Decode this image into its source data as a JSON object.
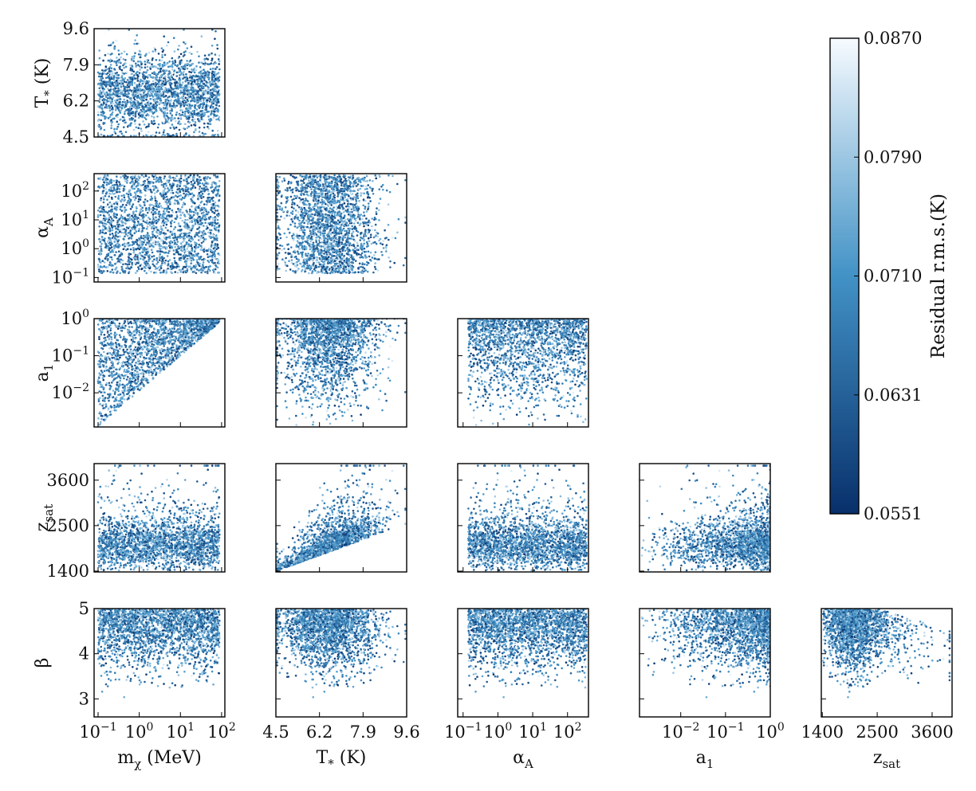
{
  "chart_data": {
    "type": "scatter",
    "layout": "corner-plot",
    "parameters": [
      {
        "key": "mchi",
        "label": "m_χ (MeV)",
        "scale": "log",
        "range": [
          0.08,
          120
        ],
        "ticks": [
          0.1,
          1,
          10,
          100
        ],
        "tick_labels": [
          "10^-1",
          "10^0",
          "10^1",
          "10^2"
        ]
      },
      {
        "key": "Tstar",
        "label": "T_* (K)",
        "scale": "linear",
        "range": [
          4.5,
          9.6
        ],
        "ticks": [
          4.5,
          6.2,
          7.9,
          9.6
        ],
        "tick_labels": [
          "4.5",
          "6.2",
          "7.9",
          "9.6"
        ]
      },
      {
        "key": "alphaA",
        "label": "α_A",
        "scale": "log",
        "range": [
          0.07,
          400
        ],
        "ticks": [
          0.1,
          1,
          10,
          100
        ],
        "tick_labels": [
          "10^-1",
          "10^0",
          "10^1",
          "10^2"
        ]
      },
      {
        "key": "a1",
        "label": "a_1",
        "scale": "log",
        "range": [
          0.0012,
          1
        ],
        "ticks": [
          0.01,
          0.1,
          1
        ],
        "tick_labels": [
          "10^-2",
          "10^-1",
          "10^0"
        ]
      },
      {
        "key": "zsat",
        "label": "z_sat",
        "scale": "linear",
        "range": [
          1380,
          4000
        ],
        "ticks": [
          1400,
          2500,
          3600
        ],
        "tick_labels": [
          "1400",
          "2500",
          "3600"
        ]
      },
      {
        "key": "beta",
        "label": "β",
        "scale": "linear",
        "range": [
          2.6,
          5
        ],
        "ticks": [
          3,
          4,
          5
        ],
        "tick_labels": [
          "3",
          "4",
          "5"
        ]
      }
    ],
    "x_labels": [
      "m_χ (MeV)",
      "T_* (K)",
      "α_A",
      "a_1",
      "z_sat"
    ],
    "y_labels": [
      "T_* (K)",
      "α_A",
      "a_1",
      "z_sat",
      "β"
    ],
    "colorbar": {
      "label": "Residual r.m.s.(K)",
      "min": 0.0551,
      "max": 0.087,
      "ticks": [
        "0.0551",
        "0.0631",
        "0.0710",
        "0.0790",
        "0.0870"
      ],
      "colormap": "Blues_r",
      "color_low": "#08306b",
      "color_mid": "#4292c6",
      "color_high": "#f7fbff"
    },
    "points_per_panel": 2200,
    "trends": {
      "a1_vs_mchi": "a_1 lower bound rises with m_χ",
      "a1_vs_alphaA": "a_1 lower bound rises with α_A",
      "zsat_vs_Tstar": "strong positive correlation, dense band from (4.6,1430) to (9.5,2550)",
      "zsat_vs_mchi": "z_sat upper envelope decreases with m_χ",
      "beta_vs_zsat": "β concentrated near 5 for z_sat below 2500"
    }
  }
}
